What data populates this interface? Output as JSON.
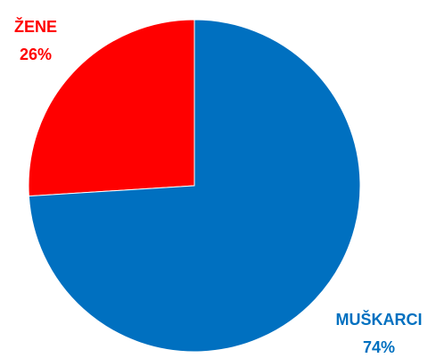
{
  "chart_data": {
    "type": "pie",
    "slices": [
      {
        "label": "ŽENE",
        "value_label": "26%",
        "value": 26,
        "color": "#ff0000"
      },
      {
        "label": "MUŠKARCI",
        "value_label": "74%",
        "value": 74,
        "color": "#0070c0"
      }
    ],
    "start": "12 o'clock",
    "direction": "counterclockwise",
    "legend": "none"
  }
}
